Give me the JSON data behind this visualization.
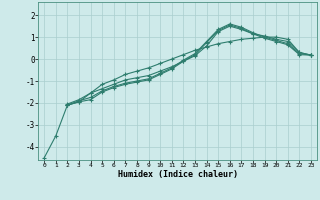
{
  "background_color": "#ceeaea",
  "grid_color": "#aacece",
  "line_color": "#2e7d6e",
  "marker_style": "+",
  "xlabel": "Humidex (Indice chaleur)",
  "xlim": [
    -0.5,
    23.5
  ],
  "ylim": [
    -4.6,
    2.6
  ],
  "yticks": [
    -4,
    -3,
    -2,
    -1,
    0,
    1,
    2
  ],
  "xticks": [
    0,
    1,
    2,
    3,
    4,
    5,
    6,
    7,
    8,
    9,
    10,
    11,
    12,
    13,
    14,
    15,
    16,
    17,
    18,
    19,
    20,
    21,
    22,
    23
  ],
  "xtick_labels": [
    "0",
    "1",
    "2",
    "3",
    "4",
    "5",
    "6",
    "7",
    "8",
    "9",
    "10",
    "11",
    "12",
    "13",
    "14",
    "15",
    "16",
    "17",
    "18",
    "19",
    "20",
    "21",
    "22",
    "23"
  ],
  "series": [
    [
      null,
      null,
      -2.1,
      -1.95,
      -1.85,
      -1.5,
      -1.3,
      -1.15,
      -1.05,
      -0.95,
      -0.7,
      -0.45,
      -0.1,
      0.2,
      0.75,
      1.3,
      1.55,
      1.4,
      1.15,
      0.95,
      0.8,
      0.65,
      0.2,
      0.18
    ],
    [
      -4.5,
      -3.5,
      -2.1,
      -1.95,
      -1.55,
      -1.35,
      -1.15,
      -0.95,
      -0.85,
      -0.75,
      -0.55,
      -0.35,
      -0.1,
      0.15,
      0.6,
      1.25,
      1.5,
      1.35,
      1.15,
      1.05,
      0.9,
      0.8,
      0.3,
      0.18
    ],
    [
      null,
      null,
      -2.1,
      -1.9,
      -1.75,
      -1.45,
      -1.25,
      -1.1,
      -1.0,
      -0.9,
      -0.65,
      -0.4,
      -0.05,
      0.25,
      0.8,
      1.35,
      1.6,
      1.45,
      1.2,
      1.0,
      0.85,
      0.7,
      0.25,
      0.18
    ],
    [
      null,
      null,
      -2.05,
      -1.85,
      -1.55,
      -1.15,
      -0.95,
      -0.7,
      -0.55,
      -0.4,
      -0.2,
      0.0,
      0.2,
      0.4,
      0.55,
      0.7,
      0.8,
      0.9,
      0.95,
      1.0,
      1.0,
      0.9,
      0.3,
      0.18
    ]
  ]
}
